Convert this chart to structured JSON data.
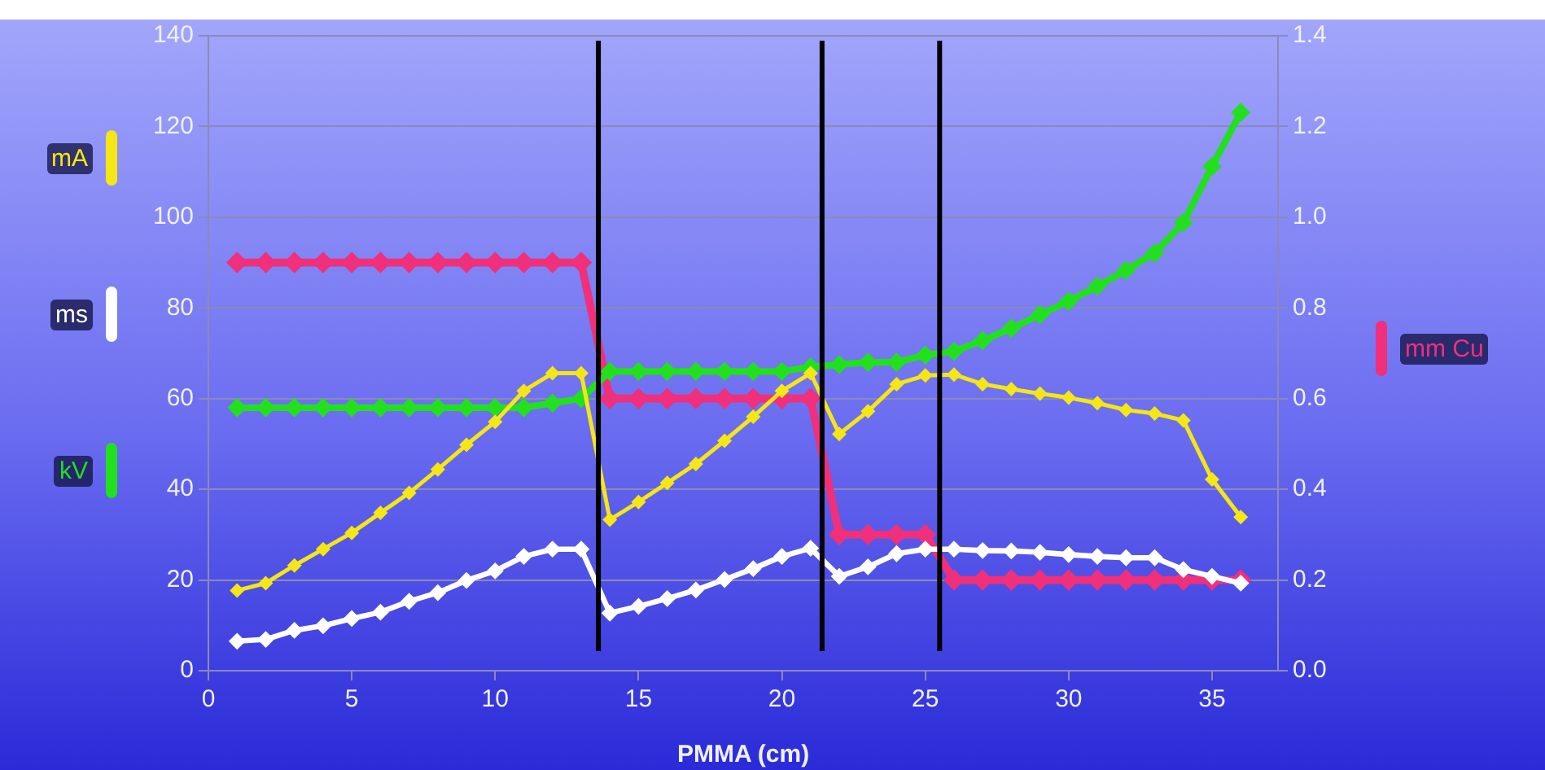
{
  "chart_data": {
    "type": "line",
    "xlabel": "PMMA (cm)",
    "x": [
      1,
      2,
      3,
      4,
      5,
      6,
      7,
      8,
      9,
      10,
      11,
      12,
      13,
      14,
      15,
      16,
      17,
      18,
      19,
      20,
      21,
      22,
      23,
      24,
      25,
      26,
      27,
      28,
      29,
      30,
      31,
      32,
      33,
      34,
      35,
      36
    ],
    "xlim": [
      0,
      37.3
    ],
    "xticks": [
      0,
      5,
      10,
      15,
      20,
      25,
      30,
      35
    ],
    "ylim": [
      0,
      140
    ],
    "yticks": [
      0,
      20,
      40,
      60,
      80,
      100,
      120,
      140
    ],
    "y2lim": [
      0,
      1.4
    ],
    "y2ticks": [
      {
        "value": 0,
        "label": "0.0"
      },
      {
        "value": 0.2,
        "label": "0.2"
      },
      {
        "value": 0.4,
        "label": "0.4"
      },
      {
        "value": 0.6,
        "label": "0.6"
      },
      {
        "value": 0.8,
        "label": "0.8"
      },
      {
        "value": 1,
        "label": "1.0"
      },
      {
        "value": 1.2,
        "label": "1.2"
      },
      {
        "value": 1.4,
        "label": "1.4"
      }
    ],
    "grid": "y",
    "legend": "left",
    "marker": "diamond",
    "line_style": "solid",
    "ref_lines": [
      {
        "axis": "x",
        "value": 13.6,
        "color": "#000000"
      },
      {
        "axis": "x",
        "value": 21.4,
        "color": "#000000"
      },
      {
        "axis": "x",
        "value": 25.5,
        "color": "#000000"
      }
    ],
    "series": [
      {
        "name": "mA",
        "color": "#f5e616",
        "values": [
          17.7,
          19.3,
          23.2,
          26.8,
          30.4,
          34.8,
          39.2,
          44.4,
          49.8,
          54.9,
          61.7,
          65.6,
          65.6,
          33.3,
          37.2,
          41.4,
          45.6,
          50.7,
          56,
          61.7,
          65.6,
          52.2,
          57.2,
          63.2,
          65.1,
          65.3,
          63.2,
          62.1,
          61.1,
          60.2,
          59,
          57.5,
          56.7,
          55.2,
          42.2,
          33.9
        ]
      },
      {
        "name": "ms",
        "color": "#ffffff",
        "values": [
          6.5,
          6.9,
          8.9,
          9.9,
          11.5,
          12.9,
          15.3,
          17.2,
          19.9,
          22,
          25.2,
          26.8,
          26.8,
          12.7,
          14.2,
          15.9,
          17.8,
          20.1,
          22.5,
          25.2,
          27,
          20.8,
          22.9,
          25.8,
          26.8,
          26.8,
          26.5,
          26.4,
          26.1,
          25.6,
          25.2,
          24.9,
          24.9,
          22.3,
          20.8,
          19.3
        ]
      },
      {
        "name": "kV",
        "color": "#22e01e",
        "values": [
          58,
          58,
          58,
          58,
          58,
          58,
          58,
          58,
          58,
          58,
          58,
          59,
          60,
          66,
          66,
          66,
          66,
          66,
          66,
          66,
          67,
          67.5,
          68,
          68,
          69.6,
          70.4,
          72.8,
          75.5,
          78.5,
          81.5,
          84.8,
          88.3,
          92.1,
          98.8,
          111.2,
          123.1
        ]
      },
      {
        "name": "mm Cu",
        "color": "#f0307a",
        "axis": "y2",
        "values": [
          0.9,
          0.9,
          0.9,
          0.9,
          0.9,
          0.9,
          0.9,
          0.9,
          0.9,
          0.9,
          0.9,
          0.9,
          0.9,
          0.6,
          0.6,
          0.6,
          0.6,
          0.6,
          0.6,
          0.6,
          0.6,
          0.3,
          0.3,
          0.3,
          0.3,
          0.2,
          0.2,
          0.2,
          0.2,
          0.2,
          0.2,
          0.2,
          0.2,
          0.2,
          0.2,
          0.2
        ]
      }
    ]
  }
}
